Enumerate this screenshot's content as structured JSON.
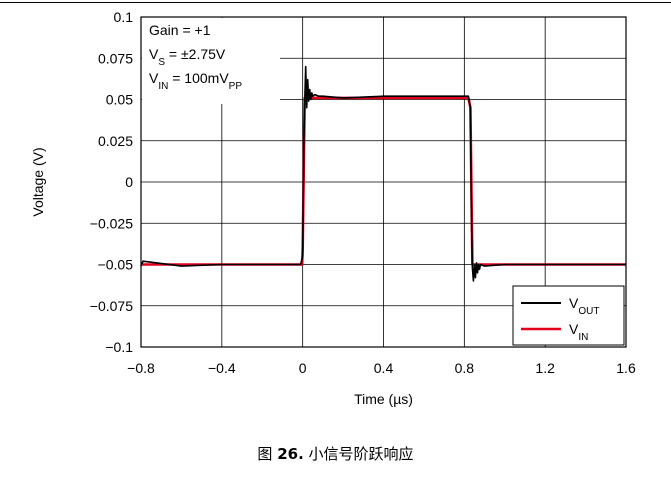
{
  "chart_data": {
    "type": "line",
    "title": "",
    "xlabel": "Time (µs)",
    "ylabel": "Voltage (V)",
    "xlim": [
      -0.8,
      1.6
    ],
    "ylim": [
      -0.1,
      0.1
    ],
    "x_ticks": [
      "−0.8",
      "−0.4",
      "0",
      "0.4",
      "0.8",
      "1.2",
      "1.6"
    ],
    "y_ticks": [
      "0.1",
      "0.075",
      "0.05",
      "0.025",
      "0",
      "−0.025",
      "−0.05",
      "−0.075",
      "−0.1"
    ],
    "grid": true,
    "legend_position": "bottom-right",
    "annotations": [
      {
        "main": "Gain = +1",
        "sub": ""
      },
      {
        "main": "V",
        "sub": "S",
        "rest": " = ±2.75V"
      },
      {
        "main": "V",
        "sub": "IN",
        "rest": " = 100mV",
        "sub2": "PP"
      }
    ],
    "series": [
      {
        "name_main": "V",
        "name_sub": "OUT",
        "color": "#000000",
        "x": [
          -0.8,
          -0.79,
          -0.6,
          -0.4,
          -0.2,
          -0.01,
          0.0,
          0.005,
          0.01,
          0.015,
          0.02,
          0.025,
          0.03,
          0.035,
          0.04,
          0.045,
          0.05,
          0.06,
          0.08,
          0.1,
          0.2,
          0.4,
          0.6,
          0.8,
          0.82,
          0.83,
          0.835,
          0.84,
          0.845,
          0.85,
          0.855,
          0.86,
          0.865,
          0.87,
          0.875,
          0.88,
          0.9,
          1.0,
          1.2,
          1.4,
          1.6
        ],
        "y": [
          -0.051,
          -0.048,
          -0.051,
          -0.05,
          -0.05,
          -0.05,
          -0.045,
          0.02,
          0.048,
          0.07,
          0.045,
          0.062,
          0.049,
          0.056,
          0.05,
          0.054,
          0.052,
          0.053,
          0.052,
          0.052,
          0.051,
          0.052,
          0.052,
          0.052,
          0.052,
          0.045,
          -0.02,
          -0.052,
          -0.06,
          -0.05,
          -0.058,
          -0.049,
          -0.055,
          -0.05,
          -0.053,
          -0.05,
          -0.051,
          -0.05,
          -0.05,
          -0.05,
          -0.05
        ]
      },
      {
        "name_main": "V",
        "name_sub": "IN",
        "color": "#e3001b",
        "x": [
          -0.8,
          -0.003,
          0.0,
          0.01,
          0.82,
          0.83,
          0.84,
          1.6
        ],
        "y": [
          -0.05,
          -0.05,
          -0.04,
          0.051,
          0.051,
          0.045,
          -0.05,
          -0.05
        ]
      }
    ]
  },
  "caption": {
    "prefix": "图 ",
    "number": "26.",
    "text": " 小信号阶跃响应"
  }
}
